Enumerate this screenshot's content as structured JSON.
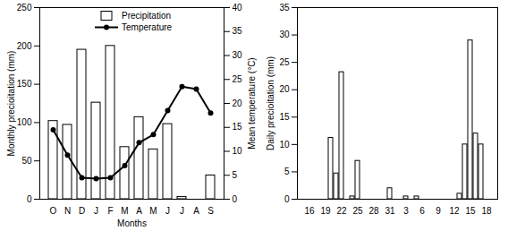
{
  "chart_data": [
    {
      "type": "bar",
      "categories": [
        "O",
        "N",
        "D",
        "J",
        "F",
        "M",
        "A",
        "M",
        "J",
        "J",
        "A",
        "S"
      ],
      "series": [
        {
          "name": "Precipitation",
          "type": "bar",
          "color": "#ffffff",
          "values": [
            102,
            97,
            195,
            126,
            200,
            68,
            107,
            65,
            98,
            3,
            0,
            31
          ]
        },
        {
          "name": "Temperature",
          "type": "line",
          "color": "#000000",
          "marker": "circle",
          "axis": "y2",
          "values": [
            14.5,
            9.2,
            4.5,
            4.3,
            4.5,
            7,
            11.8,
            13.5,
            18.5,
            23.5,
            23,
            18
          ]
        }
      ],
      "x_label": "Months",
      "y_label": "Monthly precioitation (mm)",
      "y2_label": "Mean temperature (°C)",
      "ylim": [
        0,
        250
      ],
      "yticks": [
        0,
        50,
        100,
        150,
        200,
        250
      ],
      "y2lim": [
        0,
        40
      ],
      "y2ticks": [
        0,
        5,
        10,
        15,
        20,
        25,
        30,
        35,
        40
      ],
      "legend": "top"
    },
    {
      "type": "bar",
      "categories": [
        "16",
        null,
        null,
        "19",
        null,
        null,
        "22",
        null,
        null,
        "25",
        null,
        null,
        "28",
        null,
        null,
        "31",
        null,
        null,
        "3",
        null,
        null,
        "6",
        null,
        null,
        "9",
        null,
        null,
        "12",
        null,
        null,
        "15",
        null,
        null,
        "18"
      ],
      "values": [
        0,
        0,
        0,
        0,
        11.2,
        4.7,
        23.2,
        0,
        0.5,
        7,
        0,
        0,
        0,
        0,
        0,
        2,
        0,
        0,
        0.5,
        0,
        0.5,
        0,
        0,
        0,
        0,
        0,
        0,
        0,
        1,
        10,
        29,
        12,
        10,
        0
      ],
      "color": "#ffffff",
      "y_label": "Daily precioitation (mm)",
      "ylim": [
        0,
        35
      ],
      "yticks": [
        0,
        5,
        10,
        15,
        20,
        25,
        30,
        35
      ]
    }
  ]
}
